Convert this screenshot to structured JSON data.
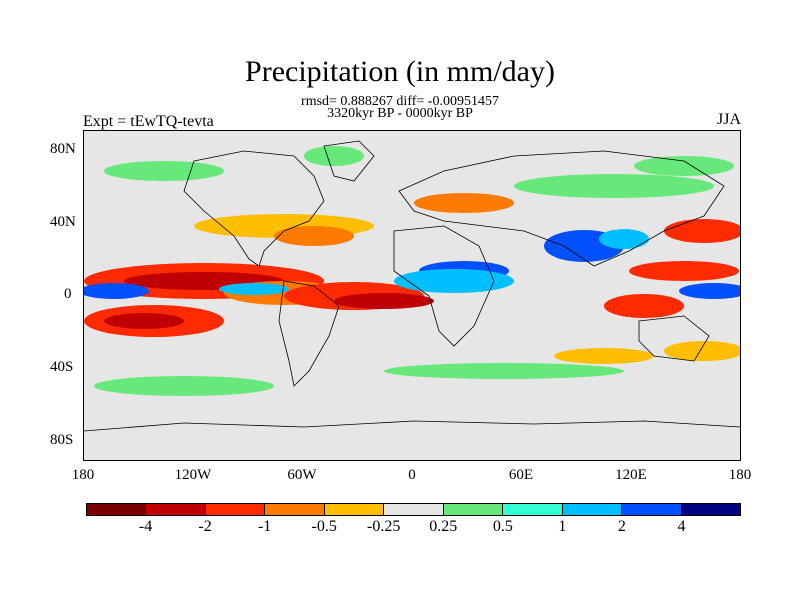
{
  "title": "Precipitation (in mm/day)",
  "subtitle_stats": "rmsd= 0.888267 diff= -0.00951457",
  "subtitle_period": "3320kyr BP - 0000kyr BP",
  "experiment": "Expt = tEwTQ-tevta",
  "season": "JJA",
  "lat_ticks": [
    "80N",
    "40N",
    "0",
    "40S",
    "80S"
  ],
  "lon_ticks": [
    "180",
    "120W",
    "60W",
    "0",
    "60E",
    "120E",
    "180"
  ],
  "colorbar": {
    "colors": [
      "#7a0000",
      "#c00000",
      "#ff2a00",
      "#ff7a00",
      "#ffbf00",
      "#e6e6e6",
      "#66e87a",
      "#33ffd2",
      "#00bfff",
      "#0050ff",
      "#000080"
    ],
    "labels": [
      "-4",
      "-2",
      "-1",
      "-0.5",
      "-0.25",
      "0.25",
      "0.5",
      "1",
      "2",
      "4"
    ]
  }
}
